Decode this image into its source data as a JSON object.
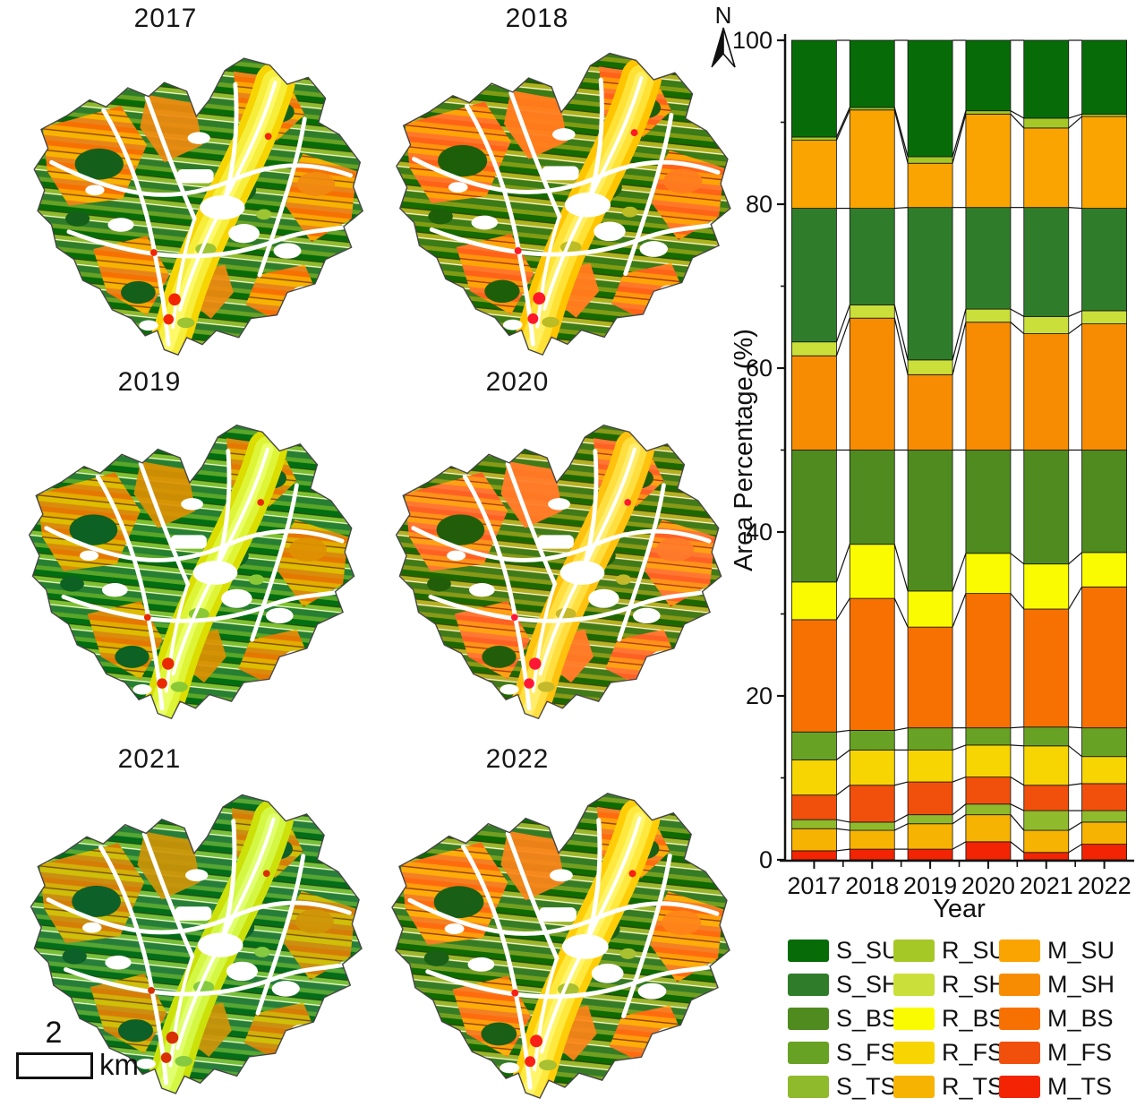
{
  "maps": {
    "panels": [
      {
        "year": "2017"
      },
      {
        "year": "2018"
      },
      {
        "year": "2019"
      },
      {
        "year": "2020"
      },
      {
        "year": "2021"
      },
      {
        "year": "2022"
      }
    ]
  },
  "north_arrow": {
    "label": "N"
  },
  "scale_bar": {
    "value": "2",
    "unit": "km"
  },
  "chart_data": {
    "type": "bar",
    "subtype": "stacked-percent",
    "title": "",
    "xlabel": "Year",
    "ylabel": "Area Percentage (%)",
    "ylim": [
      0,
      100
    ],
    "yticks": [
      0,
      20,
      40,
      60,
      80,
      100
    ],
    "categories": [
      "2017",
      "2018",
      "2019",
      "2020",
      "2021",
      "2022"
    ],
    "stack_order_bottom_to_top": [
      "M_TS",
      "R_TS",
      "S_TS",
      "M_FS",
      "R_FS",
      "S_FS",
      "M_BS",
      "R_BS",
      "S_BS",
      "M_SH",
      "R_SH",
      "S_SH",
      "M_SU",
      "R_SU",
      "S_SU"
    ],
    "series": [
      {
        "name": "S_SU",
        "color": "#076c07",
        "values": [
          11.8,
          8.2,
          14.2,
          8.6,
          9.5,
          9.0
        ]
      },
      {
        "name": "S_SH",
        "color": "#2f7d2b",
        "values": [
          16.3,
          11.8,
          18.6,
          12.4,
          13.3,
          12.5
        ]
      },
      {
        "name": "S_BS",
        "color": "#4f8b1e",
        "values": [
          16.1,
          11.5,
          17.2,
          12.6,
          13.9,
          12.5
        ]
      },
      {
        "name": "S_FS",
        "color": "#68a224",
        "values": [
          3.4,
          2.4,
          2.7,
          2.1,
          2.3,
          3.5
        ]
      },
      {
        "name": "S_TS",
        "color": "#8fba2c",
        "values": [
          1.1,
          1.0,
          1.1,
          1.3,
          2.4,
          1.4
        ]
      },
      {
        "name": "R_SU",
        "color": "#a6c827",
        "values": [
          0.4,
          0.3,
          0.8,
          0.4,
          1.2,
          0.3
        ]
      },
      {
        "name": "R_SH",
        "color": "#cbdf3a",
        "values": [
          1.7,
          1.6,
          1.8,
          1.6,
          2.1,
          1.6
        ]
      },
      {
        "name": "R_BS",
        "color": "#fbfb00",
        "values": [
          4.6,
          6.6,
          4.4,
          4.9,
          5.5,
          4.2
        ]
      },
      {
        "name": "R_FS",
        "color": "#f7d503",
        "values": [
          4.3,
          4.3,
          3.9,
          3.9,
          4.8,
          3.3
        ]
      },
      {
        "name": "R_TS",
        "color": "#f7b301",
        "values": [
          2.7,
          2.3,
          3.1,
          3.3,
          2.7,
          2.7
        ]
      },
      {
        "name": "M_SU",
        "color": "#faa402",
        "values": [
          8.3,
          12.0,
          5.4,
          11.4,
          9.7,
          11.2
        ]
      },
      {
        "name": "M_SH",
        "color": "#f78c02",
        "values": [
          11.5,
          16.1,
          9.2,
          15.6,
          14.2,
          15.4
        ]
      },
      {
        "name": "M_BS",
        "color": "#f77102",
        "values": [
          13.7,
          16.1,
          12.3,
          16.4,
          14.4,
          17.2
        ]
      },
      {
        "name": "M_FS",
        "color": "#f0500c",
        "values": [
          3.0,
          4.5,
          4.0,
          3.3,
          3.1,
          3.3
        ]
      },
      {
        "name": "M_TS",
        "color": "#f22403",
        "values": [
          1.1,
          1.3,
          1.3,
          2.2,
          0.9,
          1.9
        ]
      }
    ],
    "legend_position": "bottom-right",
    "grid": false,
    "bar_connectors": true
  },
  "legend": {
    "items": [
      {
        "label": "S_SU",
        "color": "#076c07"
      },
      {
        "label": "S_SH",
        "color": "#2f7d2b"
      },
      {
        "label": "S_BS",
        "color": "#4f8b1e"
      },
      {
        "label": "S_FS",
        "color": "#68a224"
      },
      {
        "label": "S_TS",
        "color": "#8fba2c"
      },
      {
        "label": "R_SU",
        "color": "#a6c827"
      },
      {
        "label": "R_SH",
        "color": "#cbdf3a"
      },
      {
        "label": "R_BS",
        "color": "#fbfb00"
      },
      {
        "label": "R_FS",
        "color": "#f7d503"
      },
      {
        "label": "R_TS",
        "color": "#f7b301"
      },
      {
        "label": "M_SU",
        "color": "#faa402"
      },
      {
        "label": "M_SH",
        "color": "#f78c02"
      },
      {
        "label": "M_BS",
        "color": "#f77102"
      },
      {
        "label": "M_FS",
        "color": "#f0500c"
      },
      {
        "label": "M_TS",
        "color": "#f22403"
      }
    ]
  }
}
